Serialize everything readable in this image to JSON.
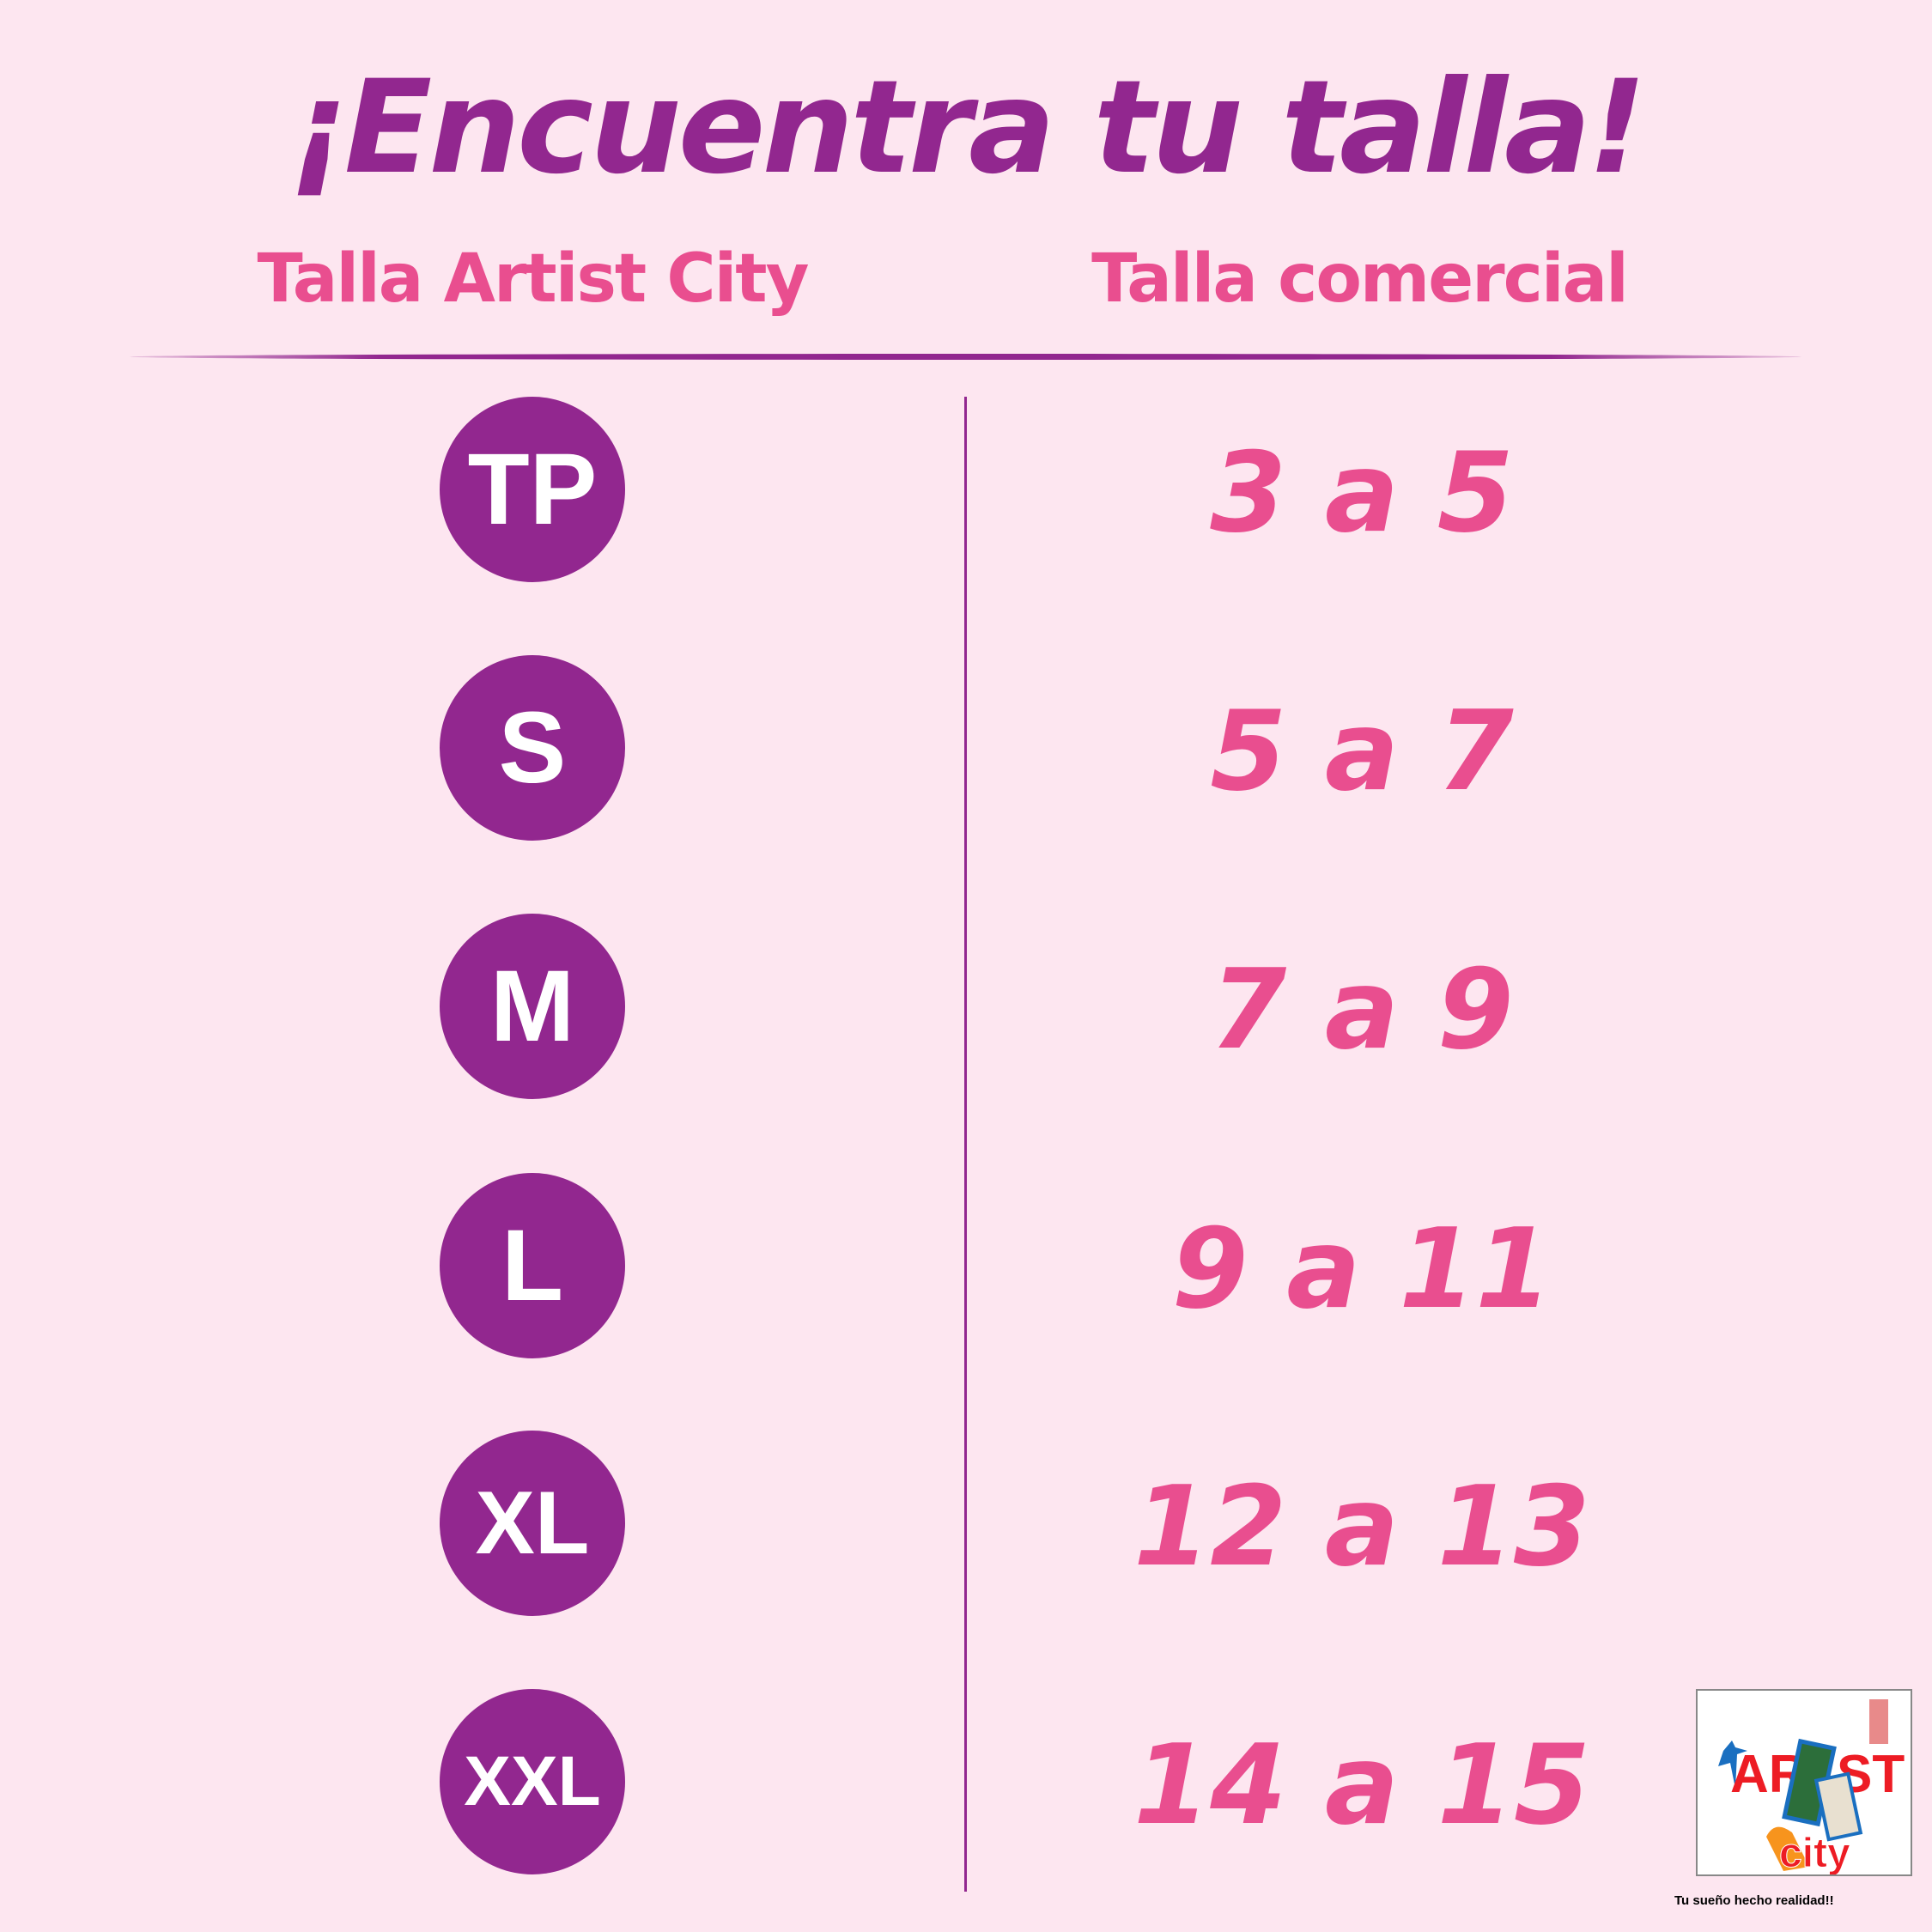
{
  "title": "¡Encuentra tu talla!",
  "headers": {
    "artist_city": "Talla Artist City",
    "comercial": "Talla comercial"
  },
  "rows": [
    {
      "size": "TP",
      "comercial": "3 a 5"
    },
    {
      "size": "S",
      "comercial": "5 a 7"
    },
    {
      "size": "M",
      "comercial": "7 a 9"
    },
    {
      "size": "L",
      "comercial": "9 a 11"
    },
    {
      "size": "XL",
      "comercial": "12 a 13"
    },
    {
      "size": "XXL",
      "comercial": "14 a 15"
    }
  ],
  "logo": {
    "text_top": "ARTIST",
    "text_bottom": "city",
    "tagline": "Tu sueño hecho realidad!!"
  },
  "colors": {
    "background": "#fde6f0",
    "primary": "#92278f",
    "accent": "#e94e8f"
  }
}
